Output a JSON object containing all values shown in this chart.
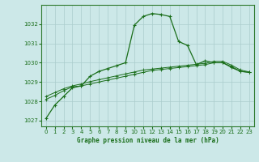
{
  "title": "Graphe pression niveau de la mer (hPa)",
  "background_color": "#cce8e8",
  "plot_bg_color": "#cce8e8",
  "grid_color": "#aacccc",
  "line_color": "#1a6e1a",
  "xlim": [
    -0.5,
    23.5
  ],
  "ylim": [
    1026.7,
    1033.0
  ],
  "yticks": [
    1027,
    1028,
    1029,
    1030,
    1031,
    1032
  ],
  "xticks": [
    0,
    1,
    2,
    3,
    4,
    5,
    6,
    7,
    8,
    9,
    10,
    11,
    12,
    13,
    14,
    15,
    16,
    17,
    18,
    19,
    20,
    21,
    22,
    23
  ],
  "series1": [
    1027.1,
    1027.8,
    1028.25,
    1028.7,
    1028.8,
    1029.3,
    1029.55,
    1029.7,
    1029.85,
    1030.0,
    1031.95,
    1032.4,
    1032.55,
    1032.5,
    1032.4,
    1031.1,
    1030.9,
    1029.9,
    1030.1,
    1030.0,
    1030.0,
    1029.75,
    1029.55,
    1029.5
  ],
  "series2": [
    1028.1,
    1028.3,
    1028.55,
    1028.75,
    1028.8,
    1028.9,
    1029.0,
    1029.1,
    1029.2,
    1029.3,
    1029.4,
    1029.5,
    1029.6,
    1029.65,
    1029.7,
    1029.75,
    1029.8,
    1029.85,
    1029.9,
    1030.0,
    1030.0,
    1029.8,
    1029.55,
    1029.5
  ],
  "series3": [
    1028.25,
    1028.45,
    1028.65,
    1028.8,
    1028.9,
    1029.02,
    1029.12,
    1029.22,
    1029.32,
    1029.42,
    1029.52,
    1029.62,
    1029.67,
    1029.72,
    1029.77,
    1029.82,
    1029.87,
    1029.92,
    1029.97,
    1030.07,
    1030.07,
    1029.87,
    1029.62,
    1029.52
  ]
}
